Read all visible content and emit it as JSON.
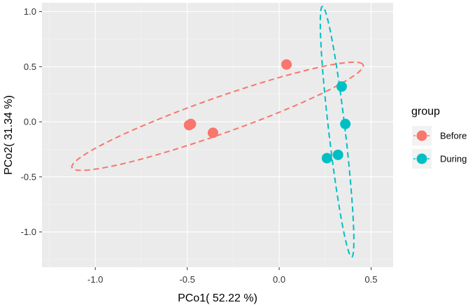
{
  "chart_data": {
    "type": "scatter",
    "title": "",
    "xlabel": "PCo1( 52.22 %)",
    "ylabel": "PCo2( 31.34 %)",
    "xlim": [
      -1.29,
      0.62
    ],
    "ylim": [
      -1.32,
      1.08
    ],
    "x_ticks": [
      -1.0,
      -0.5,
      0.0,
      0.5
    ],
    "x_tick_labels": [
      "-1.0",
      "-0.5",
      "0.0",
      "0.5"
    ],
    "y_ticks": [
      -1.0,
      -0.5,
      0.0,
      0.5,
      1.0
    ],
    "y_tick_labels": [
      "-1.0",
      "-0.5",
      "0.0",
      "0.5",
      "1.0"
    ],
    "grid": true,
    "legend": {
      "title": "group",
      "position": "right"
    },
    "series": [
      {
        "name": "Before",
        "color": "#F8766D",
        "points": [
          {
            "x": -0.48,
            "y": -0.02
          },
          {
            "x": -0.49,
            "y": -0.03
          },
          {
            "x": -0.36,
            "y": -0.1
          },
          {
            "x": 0.04,
            "y": 0.52
          }
        ],
        "ellipse": {
          "cx": -0.335,
          "cy": 0.05,
          "rx": 0.92,
          "ry": 0.15,
          "angle_deg": 31
        }
      },
      {
        "name": "During",
        "color": "#00BFC4",
        "points": [
          {
            "x": 0.34,
            "y": 0.32
          },
          {
            "x": 0.36,
            "y": -0.02
          },
          {
            "x": 0.32,
            "y": -0.3
          },
          {
            "x": 0.26,
            "y": -0.33
          }
        ],
        "ellipse": {
          "cx": 0.315,
          "cy": -0.09,
          "rx": 0.045,
          "ry": 1.14,
          "angle_deg": 4
        }
      }
    ]
  }
}
